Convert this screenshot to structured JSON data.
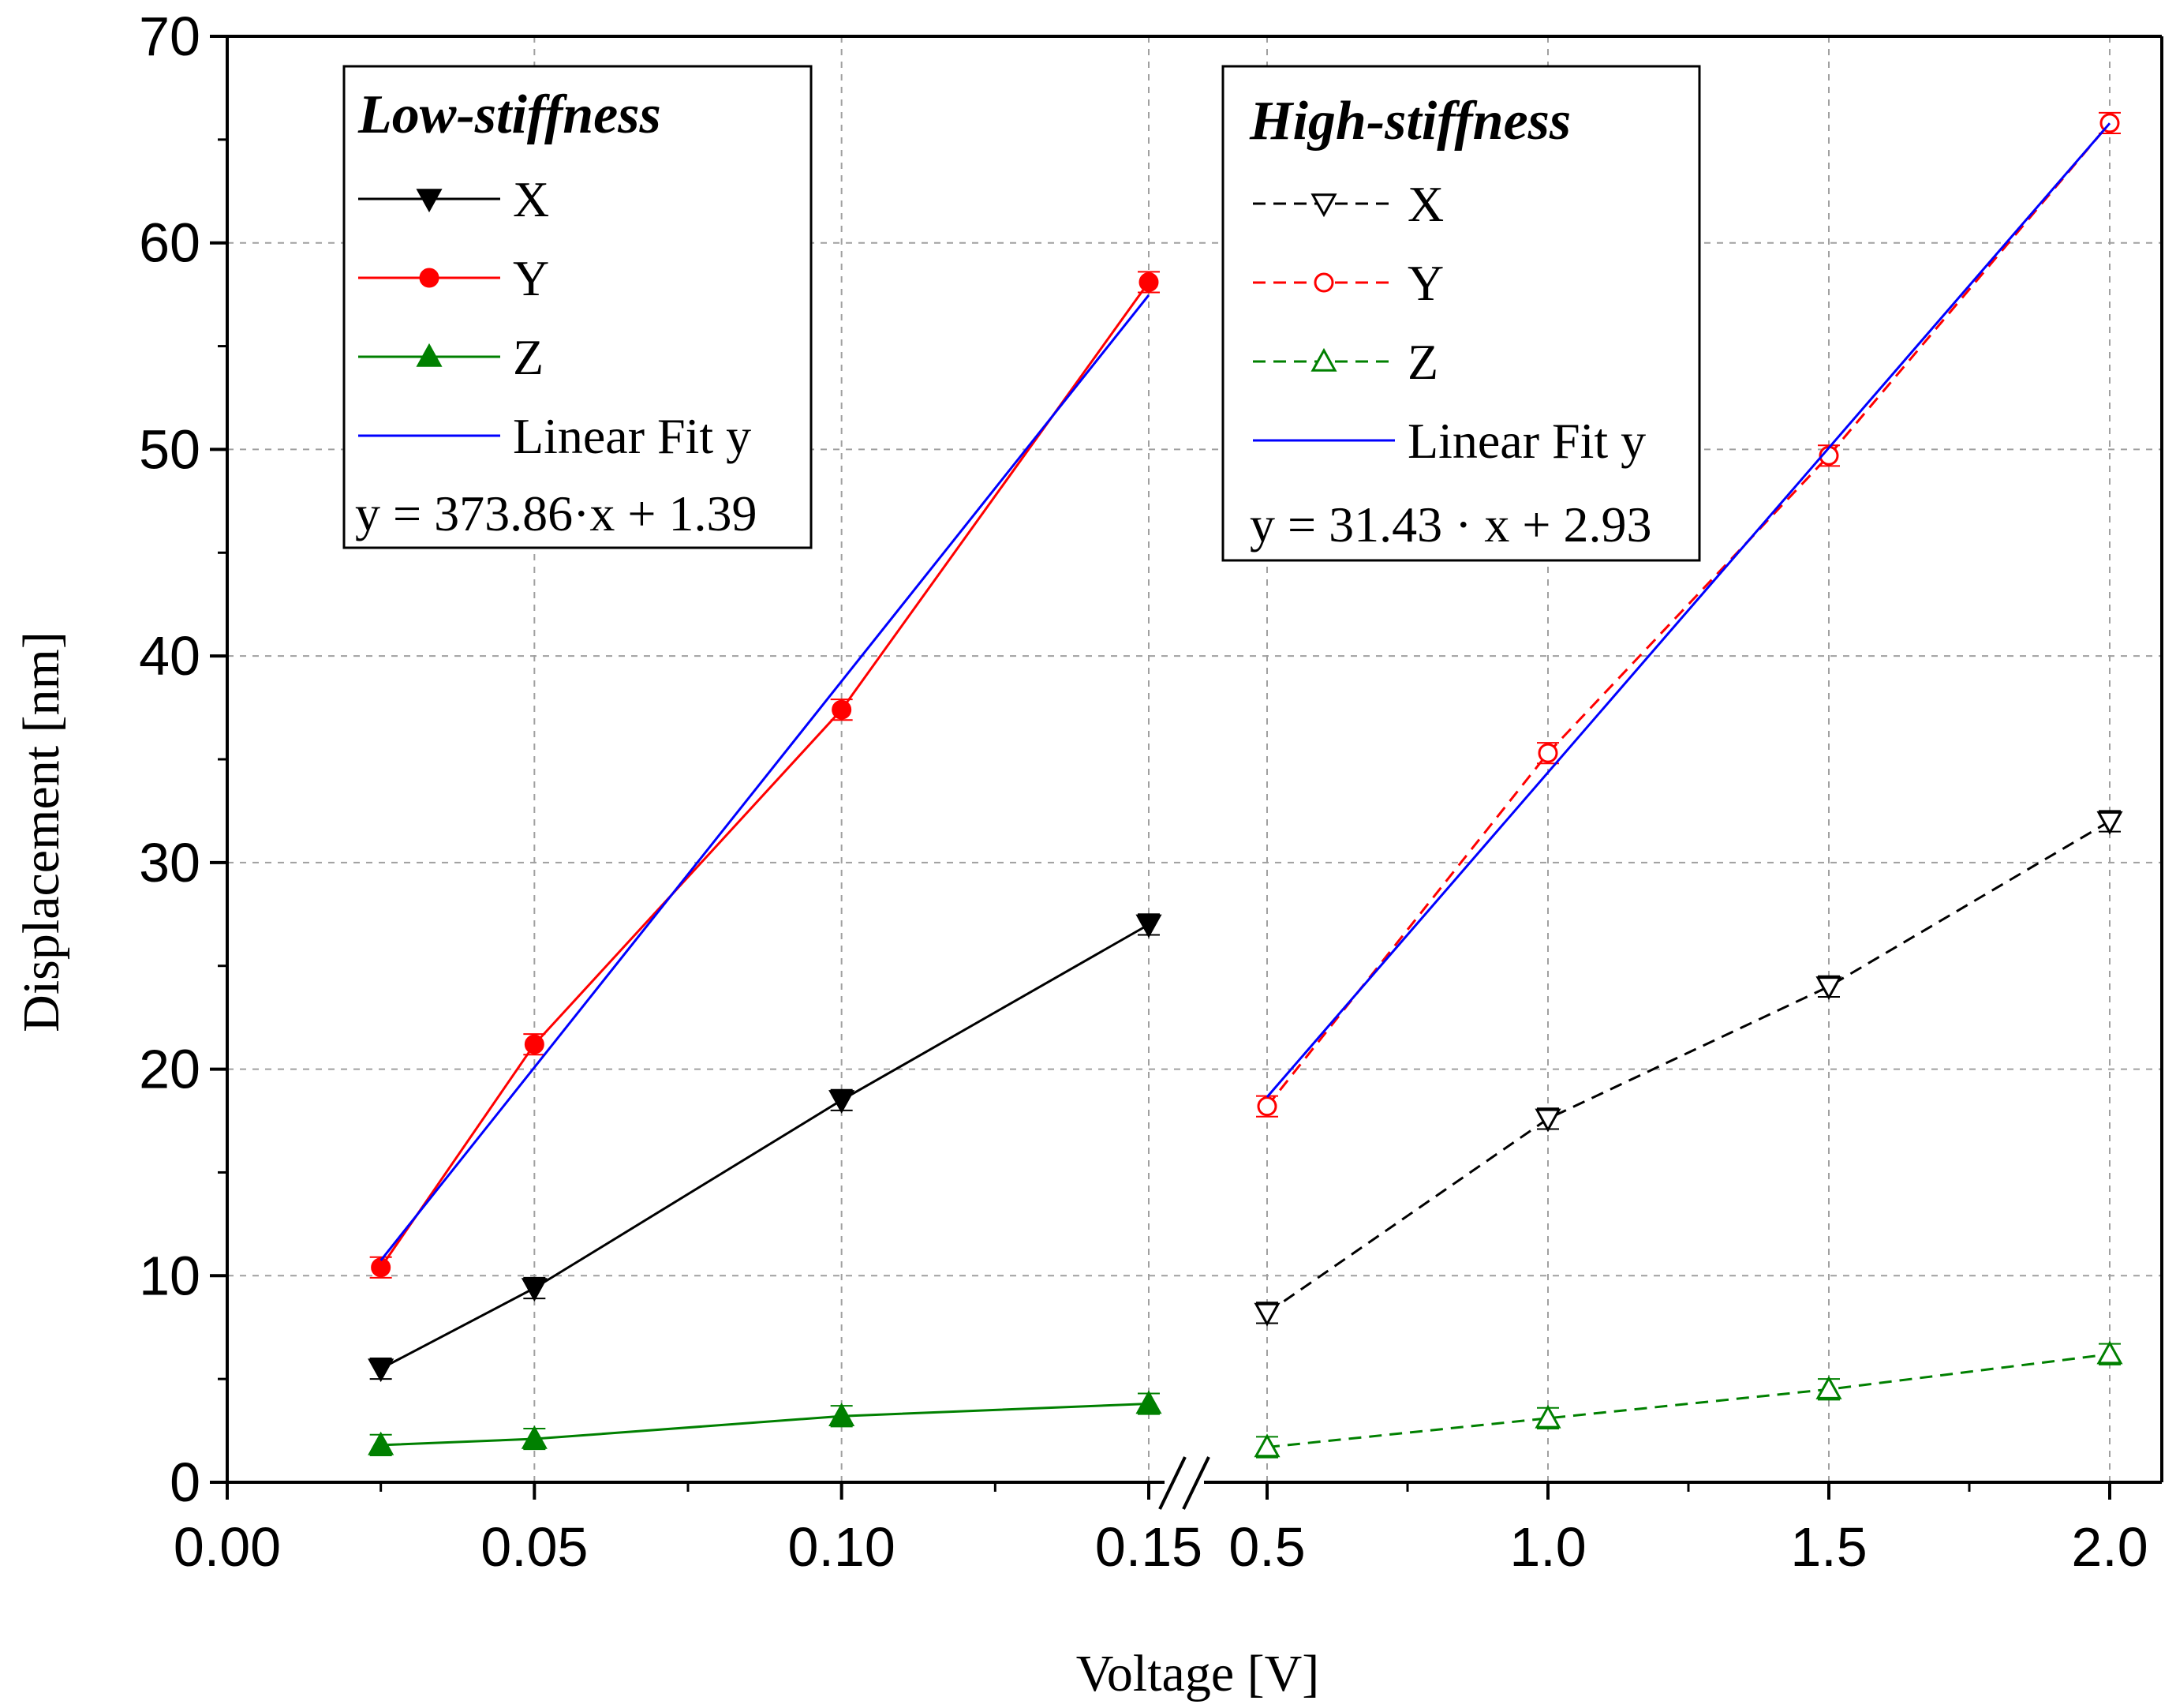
{
  "chart_data": {
    "type": "line",
    "xlabel": "Voltage [V]",
    "ylabel": "Displacement [nm]",
    "ylim": [
      0,
      70
    ],
    "y_ticks": [
      "0",
      "10",
      "20",
      "30",
      "40",
      "50",
      "60",
      "70"
    ],
    "grid": true,
    "x_axis_break": true,
    "panels": [
      {
        "name": "Low-stiffness",
        "xlim": [
          0.0,
          0.15
        ],
        "x_ticks": [
          "0.00",
          "0.05",
          "0.10",
          "0.15"
        ],
        "legend_title": "Low-stiffness",
        "series": [
          {
            "name": "X",
            "x": [
              0.025,
              0.05,
              0.1,
              0.15
            ],
            "y": [
              5.5,
              9.4,
              18.5,
              27.0
            ],
            "err": [
              0.5,
              0.5,
              0.5,
              0.5
            ],
            "color": "#000000",
            "marker": "triangle-down-filled",
            "line": "solid"
          },
          {
            "name": "Y",
            "x": [
              0.025,
              0.05,
              0.1,
              0.15
            ],
            "y": [
              10.4,
              21.2,
              37.4,
              58.1
            ],
            "err": [
              0.5,
              0.5,
              0.5,
              0.5
            ],
            "color": "#ff0000",
            "marker": "circle-filled",
            "line": "solid"
          },
          {
            "name": "Z",
            "x": [
              0.025,
              0.05,
              0.1,
              0.15
            ],
            "y": [
              1.8,
              2.1,
              3.2,
              3.8
            ],
            "err": [
              0.5,
              0.5,
              0.5,
              0.5
            ],
            "color": "#008000",
            "marker": "triangle-up-filled",
            "line": "solid"
          }
        ],
        "fit": {
          "name": "Linear Fit y",
          "x": [
            0.025,
            0.15
          ],
          "y": [
            10.74,
            57.47
          ],
          "color": "#0000ff",
          "equation": "y = 373.86·x + 1.39"
        }
      },
      {
        "name": "High-stiffness",
        "xlim": [
          0.5,
          2.0
        ],
        "x_ticks": [
          "0.5",
          "1.0",
          "1.5",
          "2.0"
        ],
        "legend_title": "High-stiffness",
        "series": [
          {
            "name": "X",
            "x": [
              0.5,
              1.0,
              1.5,
              2.0
            ],
            "y": [
              8.2,
              17.6,
              24.0,
              32.0
            ],
            "err": [
              0.5,
              0.5,
              0.5,
              0.5
            ],
            "color": "#000000",
            "marker": "triangle-down-open",
            "line": "dashed"
          },
          {
            "name": "Y",
            "x": [
              0.5,
              1.0,
              1.5,
              2.0
            ],
            "y": [
              18.2,
              35.3,
              49.7,
              65.8
            ],
            "err": [
              0.5,
              0.5,
              0.5,
              0.5
            ],
            "color": "#ff0000",
            "marker": "circle-open",
            "line": "dashed"
          },
          {
            "name": "Z",
            "x": [
              0.5,
              1.0,
              1.5,
              2.0
            ],
            "y": [
              1.7,
              3.1,
              4.5,
              6.2
            ],
            "err": [
              0.5,
              0.5,
              0.5,
              0.5
            ],
            "color": "#008000",
            "marker": "triangle-up-open",
            "line": "dashed"
          }
        ],
        "fit": {
          "name": "Linear Fit y",
          "x": [
            0.5,
            2.0
          ],
          "y": [
            18.65,
            65.79
          ],
          "color": "#0000ff",
          "equation": "y = 31.43 · x + 2.93"
        }
      }
    ]
  }
}
